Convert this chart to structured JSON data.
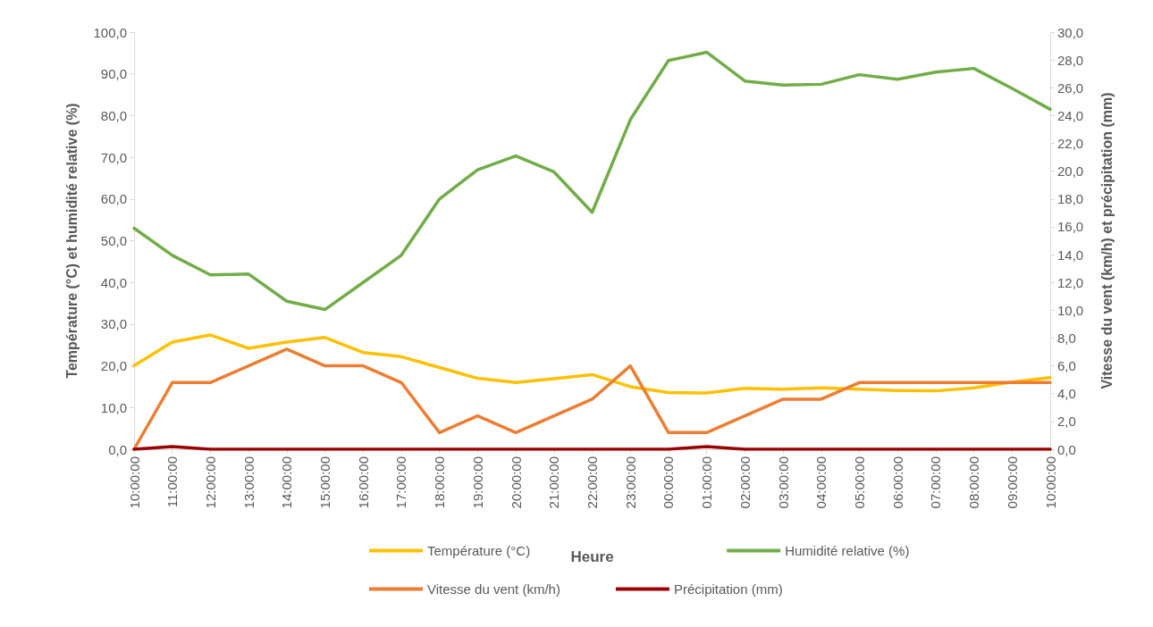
{
  "chart_data": {
    "type": "line",
    "xlabel": "Heure",
    "ylabel": "Température (°C) et humidité relative (%)",
    "y2label": "Vitesse du vent (km/h) et précipitation (mm)",
    "categories": [
      "10:00:00",
      "11:00:00",
      "12:00:00",
      "13:00:00",
      "14:00:00",
      "15:00:00",
      "16:00:00",
      "17:00:00",
      "18:00:00",
      "19:00:00",
      "20:00:00",
      "21:00:00",
      "22:00:00",
      "23:00:00",
      "00:00:00",
      "01:00:00",
      "02:00:00",
      "03:00:00",
      "04:00:00",
      "05:00:00",
      "06:00:00",
      "07:00:00",
      "08:00:00",
      "09:00:00",
      "10:00:00"
    ],
    "series": [
      {
        "name": "Température (°C)",
        "color": "#ffc000",
        "values": [
          20,
          25.7,
          27.4,
          24.2,
          25.7,
          26.8,
          23.2,
          22.2,
          19.6,
          17,
          16,
          16.9,
          17.9,
          15,
          13.6,
          13.5,
          14.6,
          14.4,
          14.7,
          14.4,
          14.1,
          14,
          14.7,
          16.1,
          17.2
        ]
      },
      {
        "name": "Humidité relative (%)",
        "color": "#70ad47",
        "values": [
          53,
          46.5,
          41.8,
          42,
          35.5,
          33.5,
          40,
          46.5,
          60,
          67,
          70.3,
          66.5,
          56.8,
          79,
          93.2,
          95.2,
          88.3,
          87.3,
          87.5,
          89.8,
          88.7,
          90.4,
          91.3,
          86.5,
          81.5
        ]
      },
      {
        "name": "Vitesse du vent (km/h)",
        "color": "#ed7d31",
        "axis": "y2",
        "values": [
          0,
          4.8,
          4.8,
          6,
          7.2,
          6,
          6,
          4.8,
          1.2,
          2.4,
          1.2,
          2.4,
          3.6,
          6,
          1.2,
          1.2,
          2.4,
          3.6,
          3.6,
          4.8,
          4.8,
          4.8,
          4.8,
          4.8,
          4.8
        ]
      },
      {
        "name": "Précipitation (mm)",
        "color": "#990000",
        "axis": "y2",
        "values": [
          0,
          0.2,
          0,
          0,
          0,
          0,
          0,
          0,
          0,
          0,
          0,
          0,
          0,
          0,
          0,
          0.2,
          0,
          0,
          0,
          0,
          0,
          0,
          0,
          0,
          0
        ]
      }
    ],
    "ylim": [
      0,
      100
    ],
    "yticks": [
      {
        "value": 0,
        "label": "0,0"
      },
      {
        "value": 10,
        "label": "10,0"
      },
      {
        "value": 20,
        "label": "20,0"
      },
      {
        "value": 30,
        "label": "30,0"
      },
      {
        "value": 40,
        "label": "40,0"
      },
      {
        "value": 50,
        "label": "50,0"
      },
      {
        "value": 60,
        "label": "60,0"
      },
      {
        "value": 70,
        "label": "70,0"
      },
      {
        "value": 80,
        "label": "80,0"
      },
      {
        "value": 90,
        "label": "90,0"
      },
      {
        "value": 100,
        "label": "100,0"
      }
    ],
    "y2lim": [
      0,
      30
    ],
    "y2ticks": [
      {
        "value": 0,
        "label": "0,0"
      },
      {
        "value": 2,
        "label": "2,0"
      },
      {
        "value": 4,
        "label": "4,0"
      },
      {
        "value": 6,
        "label": "6,0"
      },
      {
        "value": 8,
        "label": "8,0"
      },
      {
        "value": 10,
        "label": "10,0"
      },
      {
        "value": 12,
        "label": "12,0"
      },
      {
        "value": 14,
        "label": "14,0"
      },
      {
        "value": 16,
        "label": "16,0"
      },
      {
        "value": 18,
        "label": "18,0"
      },
      {
        "value": 20,
        "label": "20,0"
      },
      {
        "value": 22,
        "label": "22,0"
      },
      {
        "value": 24,
        "label": "24,0"
      },
      {
        "value": 26,
        "label": "26,0"
      },
      {
        "value": 28,
        "label": "28,0"
      },
      {
        "value": 30,
        "label": "30,0"
      }
    ],
    "grid": false,
    "legend": "bottom",
    "marker": "none",
    "line_style": "solid"
  }
}
